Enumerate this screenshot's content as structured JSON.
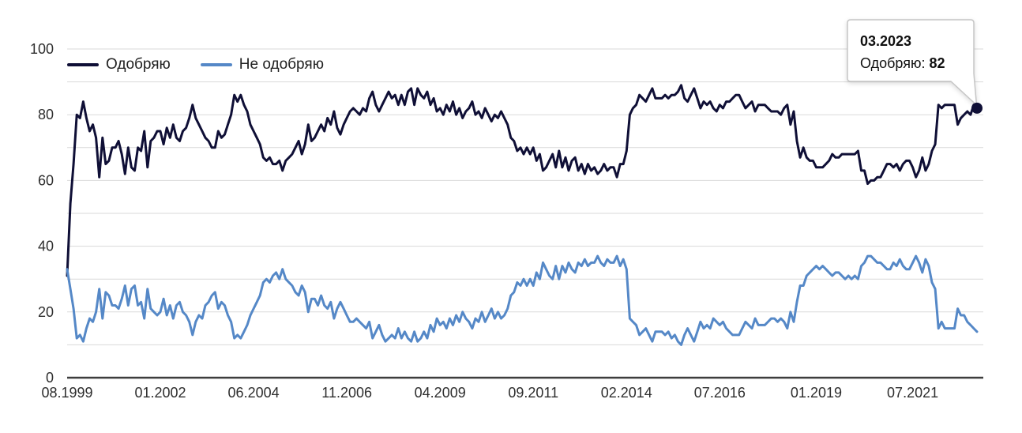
{
  "chart_data": {
    "type": "line",
    "x_unit": "month",
    "x_range": [
      "08.1999",
      "03.2023"
    ],
    "ylim": [
      0,
      100
    ],
    "grid_step": 10,
    "grid_on": true,
    "yticks": [
      0,
      20,
      40,
      60,
      80,
      100
    ],
    "xticks": [
      {
        "label": "08.1999",
        "month": 0
      },
      {
        "label": "01.2002",
        "month": 29
      },
      {
        "label": "06.2004",
        "month": 58
      },
      {
        "label": "11.2006",
        "month": 87
      },
      {
        "label": "04.2009",
        "month": 116
      },
      {
        "label": "09.2011",
        "month": 145
      },
      {
        "label": "02.2014",
        "month": 174
      },
      {
        "label": "07.2016",
        "month": 203
      },
      {
        "label": "01.2019",
        "month": 233
      },
      {
        "label": "07.2021",
        "month": 263
      }
    ],
    "legend_position": "top-left",
    "colors": {
      "background": "#ffffff",
      "grid": "#d9d9d9",
      "axis": "#3d3d3d",
      "tick_text": "#2e2e2e",
      "tooltip_border": "#c6c6c6",
      "tooltip_text": "#111111"
    },
    "series": [
      {
        "key": "approve",
        "name": "Одобряю",
        "color": "#0f0f36",
        "values": [
          31,
          53,
          65,
          80,
          79,
          84,
          79,
          75,
          77,
          73,
          61,
          73,
          65,
          66,
          70,
          70,
          72,
          68,
          62,
          70,
          64,
          63,
          70,
          69,
          75,
          64,
          72,
          73,
          75,
          75,
          71,
          76,
          73,
          77,
          73,
          72,
          75,
          76,
          79,
          83,
          79,
          77,
          75,
          73,
          72,
          70,
          70,
          75,
          73,
          74,
          77,
          80,
          86,
          84,
          86,
          83,
          81,
          77,
          75,
          73,
          71,
          67,
          66,
          67,
          65,
          65,
          66,
          63,
          66,
          67,
          68,
          70,
          72,
          68,
          71,
          77,
          72,
          73,
          75,
          77,
          75,
          79,
          77,
          81,
          76,
          74,
          77,
          79,
          81,
          82,
          81,
          80,
          82,
          81,
          85,
          87,
          83,
          81,
          83,
          85,
          87,
          85,
          86,
          83,
          86,
          83,
          87,
          88,
          83,
          88,
          86,
          85,
          87,
          83,
          85,
          81,
          82,
          80,
          83,
          81,
          84,
          80,
          82,
          79,
          81,
          82,
          84,
          80,
          81,
          79,
          82,
          80,
          78,
          80,
          79,
          81,
          79,
          77,
          73,
          72,
          69,
          70,
          68,
          70,
          68,
          70,
          66,
          68,
          63,
          64,
          66,
          68,
          64,
          69,
          64,
          67,
          63,
          66,
          67,
          63,
          65,
          62,
          65,
          63,
          64,
          62,
          63,
          65,
          63,
          64,
          64,
          61,
          65,
          65,
          69,
          80,
          82,
          83,
          86,
          85,
          84,
          86,
          88,
          85,
          85,
          85,
          86,
          85,
          86,
          86,
          87,
          89,
          85,
          84,
          86,
          88,
          85,
          82,
          84,
          83,
          84,
          82,
          81,
          83,
          82,
          84,
          84,
          85,
          86,
          86,
          84,
          82,
          83,
          84,
          81,
          83,
          83,
          83,
          82,
          81,
          81,
          81,
          80,
          82,
          83,
          77,
          81,
          72,
          67,
          70,
          67,
          66,
          66,
          64,
          64,
          64,
          65,
          66,
          68,
          67,
          67,
          68,
          68,
          68,
          68,
          68,
          69,
          63,
          63,
          59,
          60,
          60,
          61,
          61,
          63,
          65,
          65,
          64,
          65,
          63,
          65,
          66,
          66,
          64,
          61,
          63,
          67,
          63,
          65,
          69,
          71,
          83,
          82,
          83,
          83,
          83,
          83,
          77,
          79,
          80,
          81,
          80,
          83,
          82
        ]
      },
      {
        "key": "disapprove",
        "name": "Не одобряю",
        "color": "#5588c7",
        "values": [
          33,
          27,
          21,
          12,
          13,
          11,
          15,
          18,
          17,
          20,
          27,
          18,
          26,
          25,
          22,
          22,
          21,
          24,
          28,
          22,
          27,
          28,
          22,
          23,
          18,
          27,
          21,
          20,
          19,
          20,
          24,
          19,
          22,
          18,
          22,
          23,
          20,
          19,
          17,
          13,
          17,
          19,
          18,
          22,
          23,
          25,
          26,
          21,
          23,
          22,
          19,
          17,
          12,
          13,
          12,
          14,
          16,
          19,
          21,
          23,
          25,
          29,
          30,
          29,
          31,
          32,
          30,
          33,
          30,
          29,
          28,
          26,
          25,
          28,
          26,
          20,
          24,
          24,
          22,
          25,
          22,
          21,
          23,
          18,
          21,
          23,
          21,
          19,
          17,
          17,
          18,
          17,
          16,
          15,
          17,
          12,
          14,
          16,
          13,
          11,
          12,
          13,
          12,
          15,
          12,
          14,
          12,
          11,
          14,
          11,
          12,
          14,
          12,
          16,
          14,
          18,
          16,
          17,
          15,
          18,
          16,
          19,
          17,
          20,
          18,
          17,
          15,
          18,
          17,
          20,
          17,
          19,
          21,
          18,
          20,
          18,
          19,
          21,
          25,
          26,
          29,
          28,
          30,
          28,
          30,
          28,
          32,
          30,
          35,
          33,
          31,
          30,
          34,
          30,
          34,
          32,
          35,
          33,
          32,
          35,
          34,
          36,
          34,
          35,
          35,
          37,
          35,
          34,
          36,
          35,
          35,
          37,
          34,
          36,
          33,
          18,
          17,
          16,
          13,
          14,
          15,
          13,
          11,
          14,
          14,
          14,
          13,
          14,
          12,
          13,
          11,
          10,
          13,
          15,
          13,
          11,
          14,
          17,
          15,
          16,
          15,
          18,
          17,
          16,
          17,
          15,
          14,
          13,
          13,
          13,
          15,
          17,
          16,
          15,
          18,
          16,
          16,
          16,
          17,
          18,
          18,
          17,
          18,
          17,
          15,
          20,
          17,
          23,
          28,
          28,
          31,
          32,
          33,
          34,
          33,
          34,
          33,
          32,
          31,
          32,
          32,
          31,
          30,
          31,
          30,
          31,
          30,
          34,
          35,
          37,
          37,
          36,
          35,
          35,
          34,
          33,
          33,
          35,
          34,
          36,
          34,
          33,
          33,
          35,
          37,
          35,
          32,
          36,
          34,
          29,
          27,
          15,
          17,
          15,
          15,
          15,
          15,
          21,
          19,
          19,
          17,
          16,
          15,
          14
        ]
      }
    ],
    "end_dot": {
      "series_key": "approve",
      "value": 82
    },
    "tooltip": {
      "date": "03.2023",
      "label": "Одобряю",
      "separator": ": ",
      "value": "82"
    }
  }
}
